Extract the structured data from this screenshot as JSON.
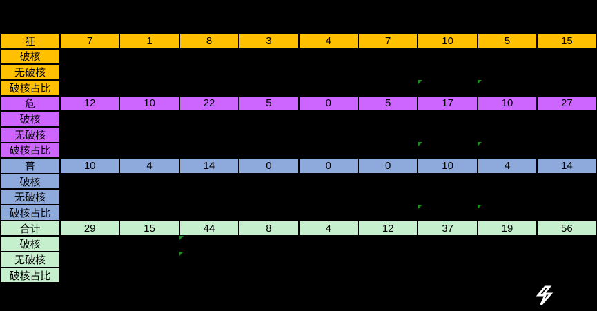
{
  "table": {
    "groups": [
      {
        "label": "狂",
        "color": "#ffc000",
        "values": [
          "7",
          "1",
          "8",
          "3",
          "4",
          "7",
          "10",
          "5",
          "15"
        ],
        "sub_rows": [
          "破核",
          "无破核",
          "破核占比"
        ]
      },
      {
        "label": "危",
        "color": "#cc66ff",
        "values": [
          "12",
          "10",
          "22",
          "5",
          "0",
          "5",
          "17",
          "10",
          "27"
        ],
        "sub_rows": [
          "破核",
          "无破核",
          "破核占比"
        ]
      },
      {
        "label": "普",
        "color": "#8ea9db",
        "values": [
          "10",
          "4",
          "14",
          "0",
          "0",
          "0",
          "10",
          "4",
          "14"
        ],
        "sub_rows": [
          "破核",
          "无破核",
          "破核占比"
        ]
      },
      {
        "label": "合计",
        "color": "#c6efce",
        "values": [
          "29",
          "15",
          "44",
          "8",
          "4",
          "12",
          "37",
          "19",
          "56"
        ],
        "sub_rows": [
          "破核",
          "无破核",
          "破核占比"
        ]
      }
    ]
  }
}
